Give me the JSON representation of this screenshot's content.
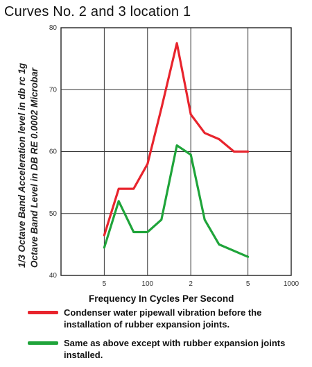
{
  "chart_data": {
    "type": "line",
    "title": "Curves No. 2 and 3 location 1",
    "ylabel_lines": [
      "1/3 Octave Band Acceleration level in db rc 1g",
      "Octave Band Level in DB RE 0.0002 Microbar"
    ],
    "xlabel": "Frequency In Cycles Per Second",
    "x_scale": "log",
    "xlim": [
      25,
      1000
    ],
    "ylim": [
      40,
      80
    ],
    "x_tick_values": [
      50,
      100,
      200,
      500,
      1000
    ],
    "x_tick_labels": [
      "5",
      "100",
      "2",
      "5",
      "1000"
    ],
    "y_ticks": [
      40,
      50,
      60,
      70,
      80
    ],
    "grid": true,
    "series": [
      {
        "name": "Condenser water pipewall vibration before the installation of rubber expansion joints.",
        "color": "#e8242d",
        "points": [
          [
            50,
            46.5
          ],
          [
            63,
            54
          ],
          [
            80,
            54
          ],
          [
            100,
            58
          ],
          [
            125,
            67
          ],
          [
            160,
            77.5
          ],
          [
            200,
            66
          ],
          [
            250,
            63
          ],
          [
            315,
            62
          ],
          [
            400,
            60
          ],
          [
            500,
            60
          ]
        ]
      },
      {
        "name": "Same as above except with rubber expansion joints installed.",
        "color": "#1fa43a",
        "points": [
          [
            50,
            44.5
          ],
          [
            63,
            52
          ],
          [
            80,
            47
          ],
          [
            100,
            47
          ],
          [
            125,
            49
          ],
          [
            160,
            61
          ],
          [
            200,
            59.5
          ],
          [
            250,
            49
          ],
          [
            315,
            45
          ],
          [
            500,
            43
          ]
        ]
      }
    ]
  }
}
